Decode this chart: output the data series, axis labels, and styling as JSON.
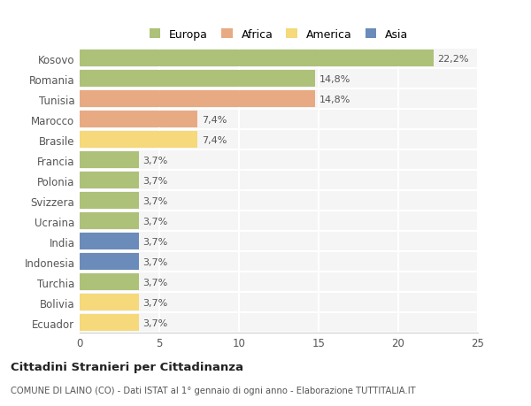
{
  "countries": [
    "Kosovo",
    "Romania",
    "Tunisia",
    "Marocco",
    "Brasile",
    "Francia",
    "Polonia",
    "Svizzera",
    "Ucraina",
    "India",
    "Indonesia",
    "Turchia",
    "Bolivia",
    "Ecuador"
  ],
  "values": [
    22.2,
    14.8,
    14.8,
    7.4,
    7.4,
    3.7,
    3.7,
    3.7,
    3.7,
    3.7,
    3.7,
    3.7,
    3.7,
    3.7
  ],
  "continents": [
    "Europa",
    "Europa",
    "Africa",
    "Africa",
    "America",
    "Europa",
    "Europa",
    "Europa",
    "Europa",
    "Asia",
    "Asia",
    "Europa",
    "America",
    "America"
  ],
  "colors": {
    "Europa": "#adc178",
    "Africa": "#e8aa82",
    "America": "#f5d97a",
    "Asia": "#6b8cba"
  },
  "legend_labels": [
    "Europa",
    "Africa",
    "America",
    "Asia"
  ],
  "legend_colors": [
    "#adc178",
    "#e8aa82",
    "#f5d97a",
    "#6b8cba"
  ],
  "xlim": [
    0,
    25
  ],
  "xticks": [
    0,
    5,
    10,
    15,
    20,
    25
  ],
  "title": "Cittadini Stranieri per Cittadinanza",
  "subtitle": "COMUNE DI LAINO (CO) - Dati ISTAT al 1° gennaio di ogni anno - Elaborazione TUTTITALIA.IT",
  "bg_color": "#ffffff",
  "plot_bg_color": "#f5f5f5",
  "grid_color": "#ffffff",
  "bar_height": 0.85
}
